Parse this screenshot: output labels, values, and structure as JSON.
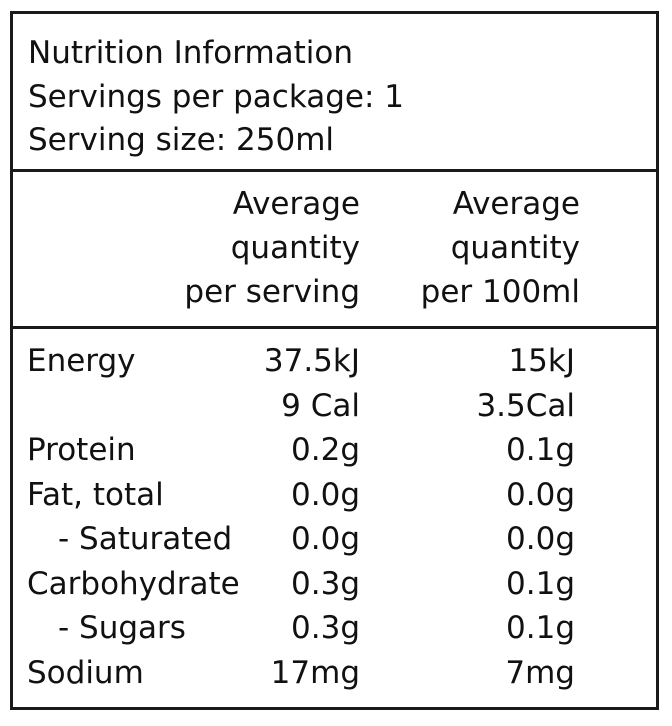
{
  "header": {
    "title": "Nutrition Information",
    "servings": "Servings per package: 1",
    "serving_size": "Serving size: 250ml"
  },
  "columns": {
    "per_serving": [
      "Average",
      "quantity",
      "per serving"
    ],
    "per_100": [
      "Average",
      "quantity",
      "per 100ml"
    ]
  },
  "rows": [
    {
      "label": "Energy",
      "serving": "37.5kJ",
      "per100": "15kJ",
      "indent": false
    },
    {
      "label": "",
      "serving": "9 Cal",
      "per100": "3.5Cal",
      "indent": false
    },
    {
      "label": "Protein",
      "serving": "0.2g",
      "per100": "0.1g",
      "indent": false
    },
    {
      "label": "Fat, total",
      "serving": "0.0g",
      "per100": "0.0g",
      "indent": false
    },
    {
      "label": "- Saturated",
      "serving": "0.0g",
      "per100": "0.0g",
      "indent": true
    },
    {
      "label": "Carbohydrate",
      "serving": "0.3g",
      "per100": "0.1g",
      "indent": false
    },
    {
      "label": "- Sugars",
      "serving": "0.3g",
      "per100": "0.1g",
      "indent": true
    },
    {
      "label": "Sodium",
      "serving": "17mg",
      "per100": "7mg",
      "indent": false
    }
  ]
}
